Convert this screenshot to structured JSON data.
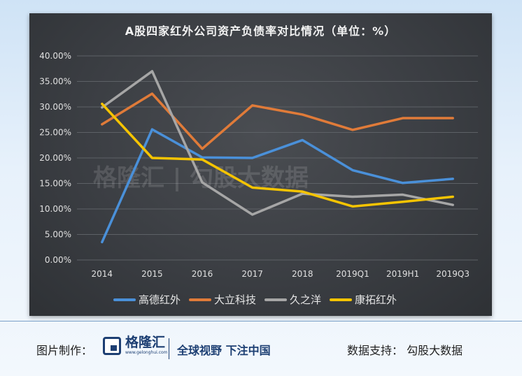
{
  "chart_data": {
    "type": "line",
    "title": "A股四家红外公司资产负债率对比情况（单位：%）",
    "categories": [
      "2014",
      "2015",
      "2016",
      "2017",
      "2018",
      "2019Q1",
      "2019H1",
      "2019Q3"
    ],
    "ylim": [
      0,
      40
    ],
    "yticks": [
      "0.00%",
      "5.00%",
      "10.00%",
      "15.00%",
      "20.00%",
      "25.00%",
      "30.00%",
      "35.00%",
      "40.00%"
    ],
    "grid": true,
    "legend_position": "bottom",
    "series": [
      {
        "name": "高德红外",
        "color": "#4a90d9",
        "values": [
          3.5,
          25.6,
          20.1,
          20.0,
          23.5,
          17.6,
          15.1,
          15.9
        ]
      },
      {
        "name": "大立科技",
        "color": "#e07b39",
        "values": [
          26.6,
          32.6,
          21.8,
          30.3,
          28.5,
          25.5,
          27.8,
          27.8
        ]
      },
      {
        "name": "久之洋",
        "color": "#a6a6a6",
        "values": [
          29.9,
          37.0,
          15.2,
          8.9,
          13.0,
          12.4,
          12.8,
          10.8
        ]
      },
      {
        "name": "康拓红外",
        "color": "#f5c400",
        "values": [
          30.6,
          20.0,
          19.7,
          14.2,
          13.4,
          10.5,
          11.4,
          12.4
        ]
      }
    ]
  },
  "watermark": "勾股大数据",
  "footer": {
    "made_by_label": "图片制作：",
    "logo_name": "格隆汇",
    "logo_url": "www.gelonghui.com",
    "slogan": "全球视野 下注中国",
    "data_support": "数据支持：  勾股大数据"
  }
}
